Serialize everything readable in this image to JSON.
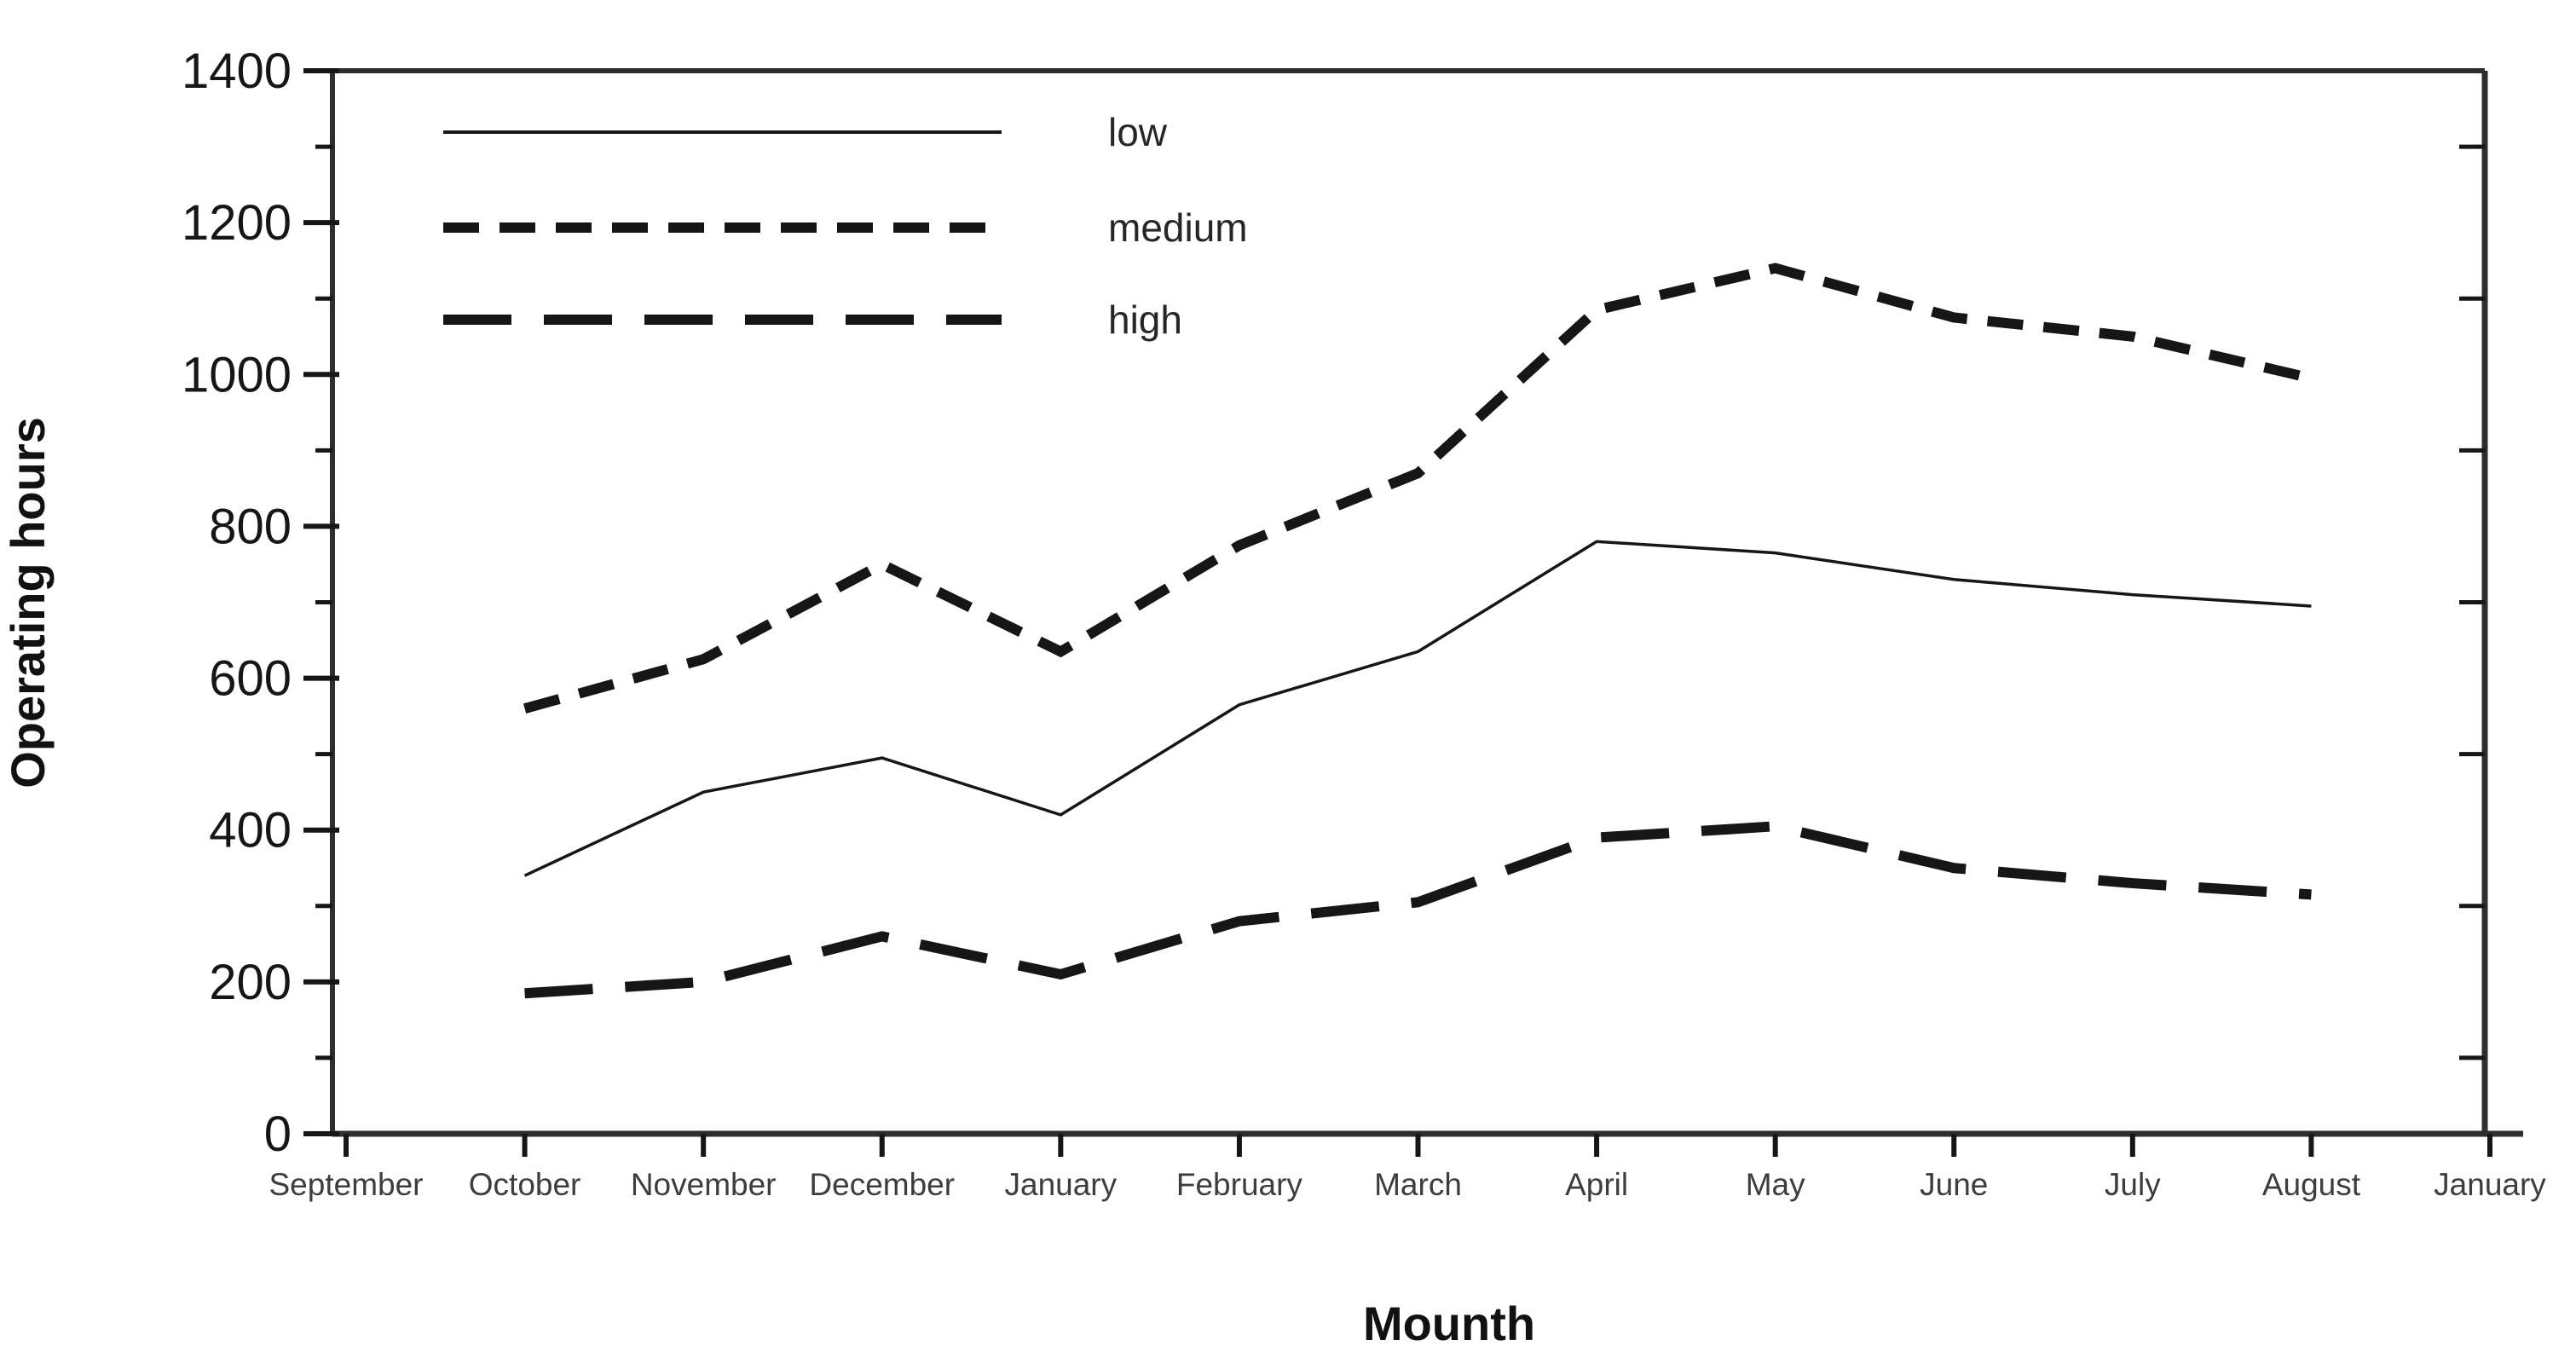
{
  "chart_data": {
    "type": "line",
    "title": "",
    "xlabel": "Mounth",
    "ylabel": "Operating hours",
    "x_categories": [
      "September",
      "October",
      "November",
      "December",
      "January",
      "February",
      "March",
      "April",
      "May",
      "June",
      "July",
      "August",
      "January"
    ],
    "data_start_category_index": 1,
    "series": [
      {
        "name": "low",
        "dash": "solid",
        "values": [
          340,
          450,
          495,
          420,
          565,
          635,
          780,
          765,
          730,
          710,
          695
        ]
      },
      {
        "name": "medium",
        "dash": "short-dash",
        "values": [
          560,
          625,
          750,
          635,
          775,
          870,
          1085,
          1140,
          1075,
          1050,
          995
        ]
      },
      {
        "name": "high",
        "dash": "long-dash",
        "values": [
          185,
          200,
          260,
          210,
          280,
          305,
          390,
          405,
          350,
          330,
          315
        ]
      }
    ],
    "ylim": [
      0,
      1400
    ],
    "y_major_tick_step": 200,
    "y_minor_tick_step": 100,
    "y_tick_labels": [
      "0",
      "200",
      "400",
      "600",
      "800",
      "1000",
      "1200",
      "1400"
    ],
    "legend_position": "top-left",
    "legend_entries": [
      "low",
      "medium",
      "high"
    ],
    "grid": false
  },
  "colors": {
    "ink": "#161616",
    "frame": "#2e2e2e",
    "month_label": "#3d3d3d",
    "background": "#ffffff"
  }
}
